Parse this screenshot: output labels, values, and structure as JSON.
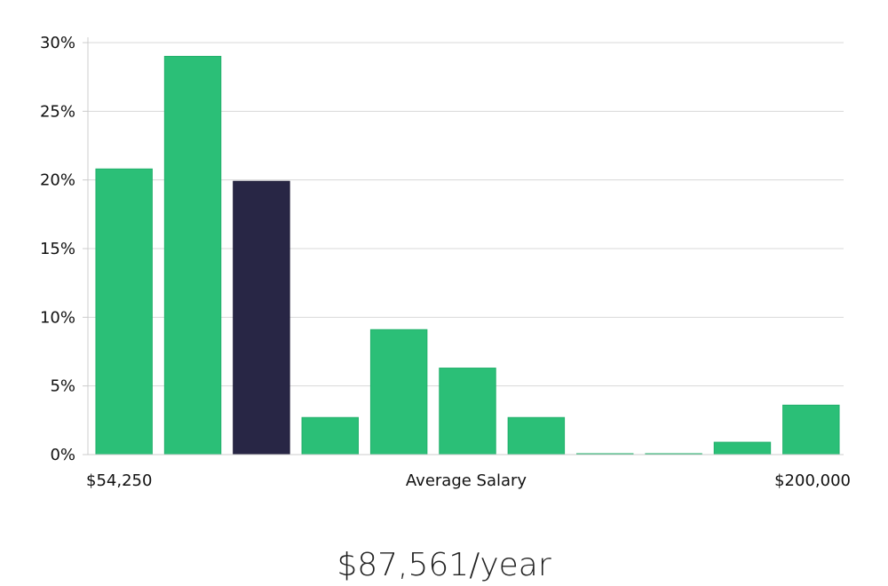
{
  "chart_data": {
    "type": "bar",
    "title": "",
    "xlabel": "Average Salary",
    "ylabel": "",
    "x_start_label": "$54,250",
    "x_end_label": "$200,000",
    "ylim": [
      0,
      30
    ],
    "y_ticks": [
      0,
      5,
      10,
      15,
      20,
      25,
      30
    ],
    "y_tick_labels": [
      "0%",
      "5%",
      "10%",
      "15%",
      "20%",
      "25%",
      "30%"
    ],
    "values": [
      20.8,
      29.0,
      19.9,
      2.7,
      9.1,
      6.3,
      2.7,
      0.05,
      0.05,
      0.9,
      3.6
    ],
    "highlight_index": 2,
    "colors": {
      "bar": "#2bbf77",
      "bar_edge": "#22b06b",
      "highlight": "#282645",
      "highlight_edge": "#1e1c38",
      "grid": "#d8d8d8",
      "axis": "#cccccc"
    },
    "grid": true
  },
  "salary_display": "$87,561/year"
}
